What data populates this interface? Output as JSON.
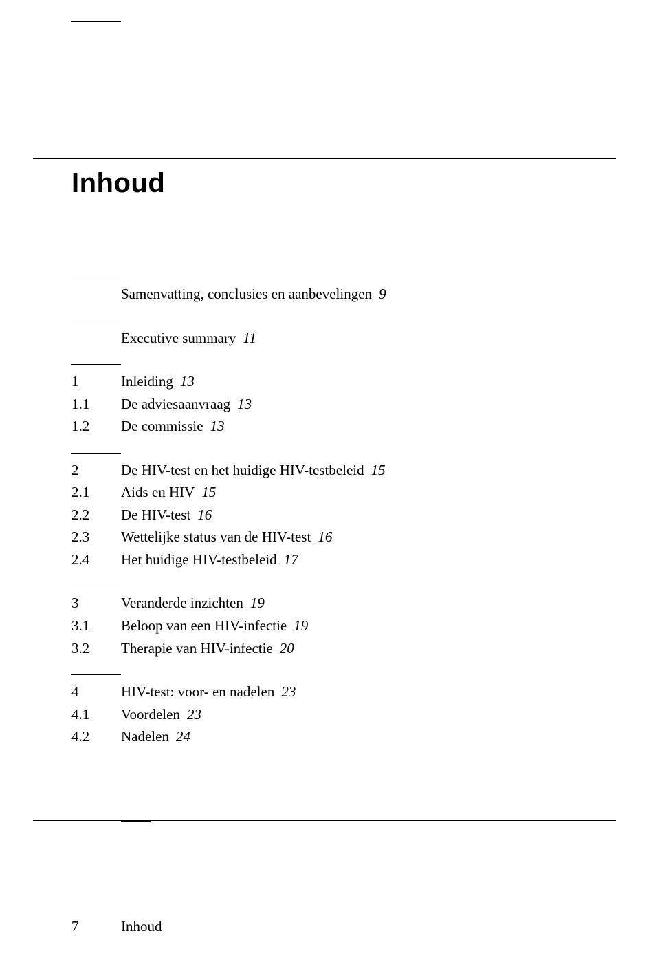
{
  "title": "Inhoud",
  "colors": {
    "background": "#ffffff",
    "text": "#000000",
    "rule": "#000000"
  },
  "typography": {
    "body_family": "Times New Roman",
    "title_family": "Arial",
    "title_size_pt": 30,
    "body_size_pt": 16
  },
  "toc": {
    "groups": [
      {
        "entries": [
          {
            "num": "",
            "label": "Samenvatting, conclusies en aanbevelingen",
            "page": "9"
          }
        ]
      },
      {
        "entries": [
          {
            "num": "",
            "label": "Executive summary",
            "page": "11"
          }
        ]
      },
      {
        "entries": [
          {
            "num": "1",
            "label": "Inleiding",
            "page": "13"
          },
          {
            "num": "1.1",
            "label": "De adviesaanvraag",
            "page": "13"
          },
          {
            "num": "1.2",
            "label": "De commissie",
            "page": "13"
          }
        ]
      },
      {
        "entries": [
          {
            "num": "2",
            "label": "De HIV-test en het huidige HIV-testbeleid",
            "page": "15"
          },
          {
            "num": "2.1",
            "label": "Aids en HIV",
            "page": "15"
          },
          {
            "num": "2.2",
            "label": "De HIV-test",
            "page": "16"
          },
          {
            "num": "2.3",
            "label": "Wettelijke status van de HIV-test",
            "page": "16"
          },
          {
            "num": "2.4",
            "label": "Het huidige HIV-testbeleid",
            "page": "17"
          }
        ]
      },
      {
        "entries": [
          {
            "num": "3",
            "label": "Veranderde inzichten",
            "page": "19"
          },
          {
            "num": "3.1",
            "label": "Beloop van een HIV-infectie",
            "page": "19"
          },
          {
            "num": "3.2",
            "label": "Therapie van HIV-infectie",
            "page": "20"
          }
        ]
      },
      {
        "entries": [
          {
            "num": "4",
            "label": "HIV-test: voor- en nadelen",
            "page": "23"
          },
          {
            "num": "4.1",
            "label": "Voordelen",
            "page": "23"
          },
          {
            "num": "4.2",
            "label": "Nadelen",
            "page": "24"
          }
        ]
      }
    ]
  },
  "footer": {
    "page_number": "7",
    "section": "Inhoud"
  }
}
